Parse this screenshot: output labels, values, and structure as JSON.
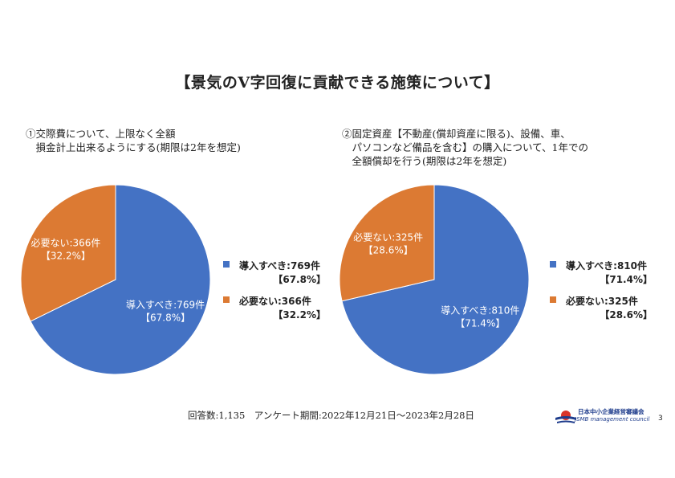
{
  "title": "【景気のV字回復に貢献できる施策について】",
  "footer": {
    "text": "回答数:1,135　アンケート期間:2022年12月21日～2023年2月28日",
    "logo_name": "日本中小企業経営審議会",
    "logo_sub": "JSMB management council",
    "page_number": "3"
  },
  "colors": {
    "adopt": "#4472c4",
    "unnecessary": "#dc7a33"
  },
  "chart_data": [
    {
      "type": "pie",
      "title_lines": [
        "①交際費について、上限なく全額",
        "　損金計上出来るようにする(期限は2年を想定)"
      ],
      "slices": [
        {
          "label": "導入すべき:769件",
          "count": 769,
          "percent": 67.8,
          "pct_label": "【67.8%】",
          "chart_pct_label": "【67.8%】",
          "color": "#4472c4"
        },
        {
          "label": "必要ない:366件",
          "count": 366,
          "percent": 32.2,
          "pct_label": "【32.2%】",
          "chart_pct_label": "【32.2%】",
          "color": "#dc7a33"
        }
      ],
      "legend_position": "right"
    },
    {
      "type": "pie",
      "title_lines": [
        "②固定資産【不動産(償却資産に限る)、設備、車、",
        "　パソコンなど備品を含む】の購入について、1年での",
        "　全額償却を行う(期限は2年を想定)"
      ],
      "slices": [
        {
          "label": "導入すべき:810件",
          "count": 810,
          "percent": 71.4,
          "pct_label": "【71.4%】",
          "chart_pct_label": "【71.4%】",
          "color": "#4472c4"
        },
        {
          "label": "必要ない:325件",
          "count": 325,
          "percent": 28.6,
          "pct_label": "【28.6%】",
          "chart_pct_label": "【28.6%】",
          "color": "#dc7a33"
        }
      ],
      "legend_position": "right"
    }
  ]
}
